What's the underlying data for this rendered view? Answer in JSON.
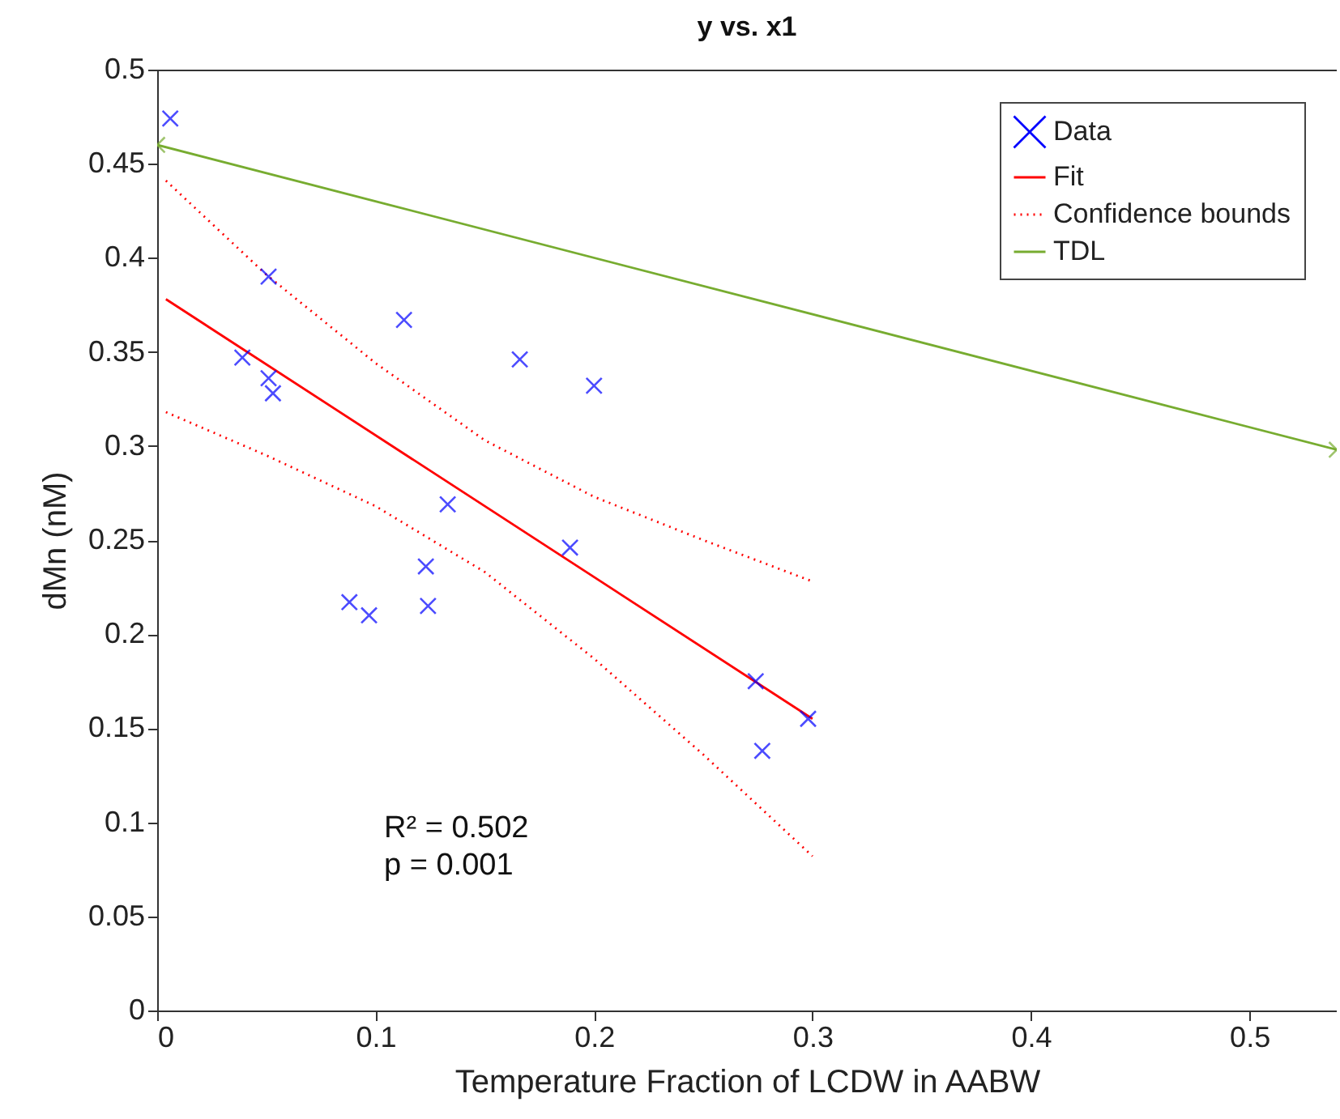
{
  "chart_data": {
    "type": "scatter",
    "title": "y vs. x1",
    "xlabel": "Temperature Fraction of LCDW in AABW",
    "ylabel": "dMn (nM)",
    "xlim": [
      0,
      0.54
    ],
    "xticks": [
      0,
      0.1,
      0.2,
      0.3,
      0.4,
      0.5
    ],
    "ylim": [
      0,
      0.5
    ],
    "yticks": [
      0,
      0.05,
      0.1,
      0.15,
      0.2,
      0.25,
      0.3,
      0.35,
      0.4,
      0.45,
      0.5
    ],
    "grid": false,
    "legend": "top right",
    "annotations": [
      "R² = 0.502",
      "p = 0.001"
    ],
    "series": [
      {
        "name": "Data",
        "type": "scatter",
        "color": "#0000ff",
        "marker": "cross",
        "x": [
          0.006,
          0.039,
          0.051,
          0.053,
          0.051,
          0.113,
          0.166,
          0.2,
          0.133,
          0.123,
          0.124,
          0.088,
          0.097,
          0.189,
          0.274,
          0.277,
          0.298
        ],
        "values": [
          0.474,
          0.347,
          0.336,
          0.328,
          0.39,
          0.367,
          0.346,
          0.332,
          0.269,
          0.236,
          0.215,
          0.217,
          0.21,
          0.246,
          0.175,
          0.138,
          0.155
        ]
      },
      {
        "name": "Fit",
        "type": "line",
        "color": "#ff0000",
        "line_style": "solid",
        "marker": "none",
        "x": [
          0.004,
          0.3
        ],
        "values": [
          0.378,
          0.155
        ]
      },
      {
        "name": "Confidence bounds",
        "type": "line",
        "color": "#ff0000",
        "line_style": "dotted",
        "marker": "none",
        "x": [
          0.004,
          0.05,
          0.1,
          0.15,
          0.2,
          0.25,
          0.3
        ],
        "values": [
          0.441,
          0.391,
          0.344,
          0.303,
          0.273,
          0.25,
          0.228
        ]
      },
      {
        "type": "line",
        "color": "#ff0000",
        "line_style": "dotted",
        "marker": "none",
        "x": [
          0.004,
          0.05,
          0.1,
          0.15,
          0.2,
          0.25,
          0.3
        ],
        "values": [
          0.318,
          0.295,
          0.268,
          0.233,
          0.187,
          0.136,
          0.082
        ]
      },
      {
        "name": "TDL",
        "type": "line",
        "color": "#77ac30",
        "line_style": "solid",
        "marker": "cross",
        "x": [
          0,
          0.54
        ],
        "values": [
          0.46,
          0.298
        ]
      }
    ]
  }
}
